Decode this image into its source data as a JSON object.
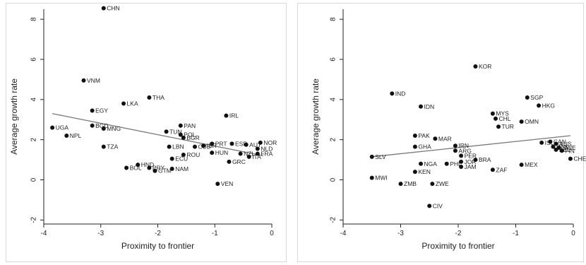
{
  "chart_data": [
    {
      "type": "scatter",
      "xlabel": "Proximity to frontier",
      "ylabel": "Average growth rate",
      "xlim": [
        -4,
        0
      ],
      "ylim": [
        -2.2,
        8.5
      ],
      "xticks": [
        "-4",
        "-3",
        "-2",
        "-1",
        "0"
      ],
      "yticks": [
        "-2",
        "0",
        "2",
        "4",
        "6",
        "8"
      ],
      "grid": false,
      "fit_line": {
        "x": [
          -3.85,
          -0.15
        ],
        "y": [
          3.3,
          1.2
        ]
      },
      "points": [
        {
          "label": "CHN",
          "x": -2.95,
          "y": 8.55
        },
        {
          "label": "VNM",
          "x": -3.3,
          "y": 4.95
        },
        {
          "label": "THA",
          "x": -2.15,
          "y": 4.1
        },
        {
          "label": "LKA",
          "x": -2.6,
          "y": 3.8
        },
        {
          "label": "EGY",
          "x": -3.15,
          "y": 3.45
        },
        {
          "label": "IRL",
          "x": -0.8,
          "y": 3.2
        },
        {
          "label": "BGD",
          "x": -3.15,
          "y": 2.7
        },
        {
          "label": "MNG",
          "x": -2.95,
          "y": 2.55
        },
        {
          "label": "UGA",
          "x": -3.85,
          "y": 2.6
        },
        {
          "label": "NPL",
          "x": -3.6,
          "y": 2.2
        },
        {
          "label": "PAN",
          "x": -1.6,
          "y": 2.7
        },
        {
          "label": "TUN",
          "x": -1.85,
          "y": 2.4
        },
        {
          "label": "POL",
          "x": -1.6,
          "y": 2.25
        },
        {
          "label": "BGR",
          "x": -1.55,
          "y": 2.1
        },
        {
          "label": "TZA",
          "x": -2.95,
          "y": 1.65
        },
        {
          "label": "LBN",
          "x": -1.8,
          "y": 1.65
        },
        {
          "label": "CUB",
          "x": -1.35,
          "y": 1.65
        },
        {
          "label": "ISR",
          "x": -1.2,
          "y": 1.7
        },
        {
          "label": "PRT",
          "x": -1.05,
          "y": 1.8
        },
        {
          "label": "ESP",
          "x": -0.7,
          "y": 1.8
        },
        {
          "label": "AUT",
          "x": -0.45,
          "y": 1.75
        },
        {
          "label": "NOR",
          "x": -0.2,
          "y": 1.85
        },
        {
          "label": "NLD",
          "x": -0.25,
          "y": 1.55
        },
        {
          "label": "HUN",
          "x": -1.05,
          "y": 1.35
        },
        {
          "label": "ROU",
          "x": -1.55,
          "y": 1.25
        },
        {
          "label": "NZL",
          "x": -0.55,
          "y": 1.3
        },
        {
          "label": "ITA",
          "x": -0.4,
          "y": 1.15
        },
        {
          "label": "FRA",
          "x": -0.25,
          "y": 1.3
        },
        {
          "label": "ECU",
          "x": -1.75,
          "y": 1.05
        },
        {
          "label": "GRC",
          "x": -0.75,
          "y": 0.9
        },
        {
          "label": "HND",
          "x": -2.35,
          "y": 0.75
        },
        {
          "label": "BOL",
          "x": -2.55,
          "y": 0.6
        },
        {
          "label": "PRY",
          "x": -2.15,
          "y": 0.6
        },
        {
          "label": "GTM",
          "x": -2.05,
          "y": 0.45
        },
        {
          "label": "NAM",
          "x": -1.75,
          "y": 0.55
        },
        {
          "label": "VEN",
          "x": -0.95,
          "y": -0.2
        }
      ]
    },
    {
      "type": "scatter",
      "xlabel": "Proximity to frontier",
      "ylabel": "Average growth rate",
      "xlim": [
        -4,
        0
      ],
      "ylim": [
        -2.2,
        8.5
      ],
      "xticks": [
        "-4",
        "-3",
        "-2",
        "-1",
        "0"
      ],
      "yticks": [
        "-2",
        "0",
        "2",
        "4",
        "6",
        "8"
      ],
      "grid": false,
      "fit_line": {
        "x": [
          -3.5,
          -0.05
        ],
        "y": [
          1.15,
          2.2
        ]
      },
      "points": [
        {
          "label": "KOR",
          "x": -1.7,
          "y": 5.65
        },
        {
          "label": "IND",
          "x": -3.15,
          "y": 4.3
        },
        {
          "label": "SGP",
          "x": -0.8,
          "y": 4.1
        },
        {
          "label": "HKG",
          "x": -0.6,
          "y": 3.7
        },
        {
          "label": "IDN",
          "x": -2.65,
          "y": 3.65
        },
        {
          "label": "MYS",
          "x": -1.4,
          "y": 3.3
        },
        {
          "label": "CHL",
          "x": -1.35,
          "y": 3.05
        },
        {
          "label": "OMN",
          "x": -0.9,
          "y": 2.9
        },
        {
          "label": "TUR",
          "x": -1.3,
          "y": 2.65
        },
        {
          "label": "PAK",
          "x": -2.75,
          "y": 2.2
        },
        {
          "label": "MAR",
          "x": -2.4,
          "y": 2.05
        },
        {
          "label": "GHA",
          "x": -2.75,
          "y": 1.65
        },
        {
          "label": "IRN",
          "x": -2.05,
          "y": 1.7
        },
        {
          "label": "ARG",
          "x": -2.05,
          "y": 1.45
        },
        {
          "label": "PER",
          "x": -1.95,
          "y": 1.2
        },
        {
          "label": "SLV",
          "x": -3.5,
          "y": 1.15
        },
        {
          "label": "ISL",
          "x": -0.55,
          "y": 1.85
        },
        {
          "label": "CAN",
          "x": -0.4,
          "y": 1.9
        },
        {
          "label": "AUS",
          "x": -0.3,
          "y": 1.8
        },
        {
          "label": "DNK",
          "x": -0.35,
          "y": 1.65
        },
        {
          "label": "BEL",
          "x": -0.3,
          "y": 1.5
        },
        {
          "label": "SWE",
          "x": -0.25,
          "y": 1.6
        },
        {
          "label": "FIN",
          "x": -0.2,
          "y": 1.45
        },
        {
          "label": "CHE",
          "x": -0.05,
          "y": 1.05
        },
        {
          "label": "NGA",
          "x": -2.65,
          "y": 0.8
        },
        {
          "label": "PHL",
          "x": -2.2,
          "y": 0.8
        },
        {
          "label": "JOR",
          "x": -1.95,
          "y": 0.9
        },
        {
          "label": "BRA",
          "x": -1.7,
          "y": 1.0
        },
        {
          "label": "JAM",
          "x": -1.95,
          "y": 0.65
        },
        {
          "label": "KEN",
          "x": -2.75,
          "y": 0.4
        },
        {
          "label": "ZAF",
          "x": -1.4,
          "y": 0.5
        },
        {
          "label": "MEX",
          "x": -0.9,
          "y": 0.75
        },
        {
          "label": "MWI",
          "x": -3.5,
          "y": 0.1
        },
        {
          "label": "ZMB",
          "x": -3.0,
          "y": -0.2
        },
        {
          "label": "ZWE",
          "x": -2.45,
          "y": -0.2
        },
        {
          "label": "CIV",
          "x": -2.5,
          "y": -1.3
        }
      ]
    }
  ]
}
